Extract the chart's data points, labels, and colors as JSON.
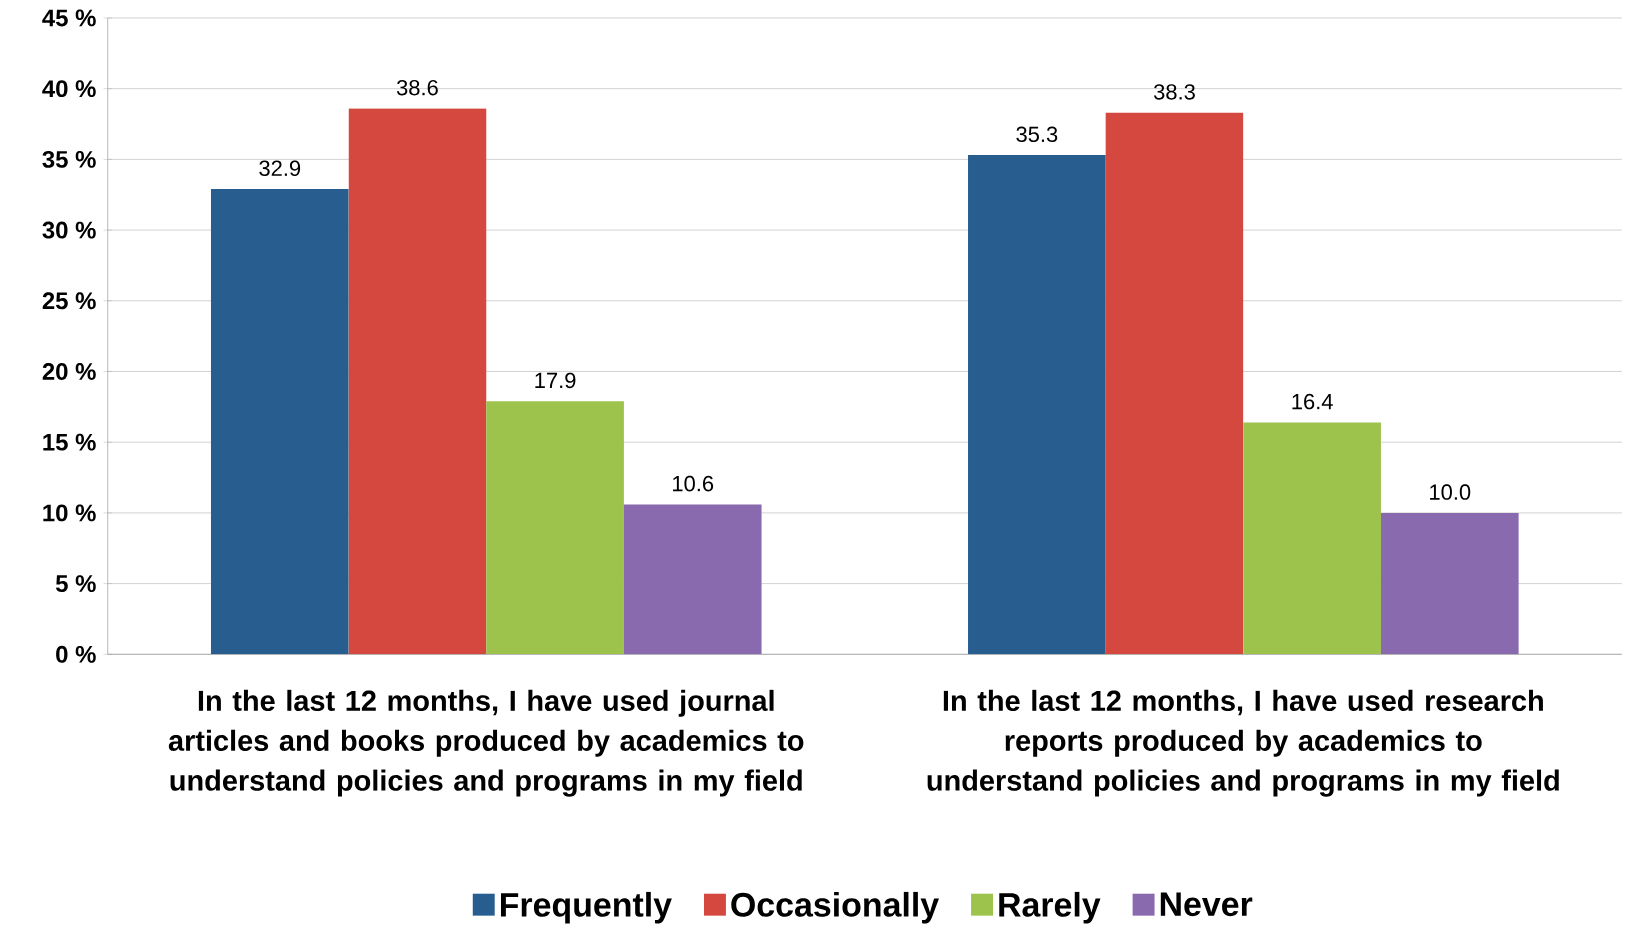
{
  "chart_data": {
    "type": "bar",
    "categories": [
      "In the last 12 months, I have used journal articles and books produced by academics to understand policies and programs in my field",
      "In the last 12 months, I have used research reports produced by academics to understand policies and programs in my field"
    ],
    "series": [
      {
        "name": "Frequently",
        "color": "#285e8f",
        "values": [
          32.9,
          35.3
        ],
        "value_labels": [
          "32.9",
          "35.3"
        ]
      },
      {
        "name": "Occasionally",
        "color": "#d4483f",
        "values": [
          38.6,
          38.3
        ],
        "value_labels": [
          "38.6",
          "38.3"
        ]
      },
      {
        "name": "Rarely",
        "color": "#9dc34c",
        "values": [
          17.9,
          16.4
        ],
        "value_labels": [
          "17.9",
          "16.4"
        ]
      },
      {
        "name": "Never",
        "color": "#8a6aaf",
        "values": [
          10.6,
          10.0
        ],
        "value_labels": [
          "10.6",
          "10.0"
        ]
      }
    ],
    "ylim": [
      0,
      45
    ],
    "yticks": [
      {
        "value": 0,
        "label": "0 %"
      },
      {
        "value": 5,
        "label": "5 %"
      },
      {
        "value": 10,
        "label": "10 %"
      },
      {
        "value": 15,
        "label": "15 %"
      },
      {
        "value": 20,
        "label": "20 %"
      },
      {
        "value": 25,
        "label": "25 %"
      },
      {
        "value": 30,
        "label": "30 %"
      },
      {
        "value": 35,
        "label": "35 %"
      },
      {
        "value": 40,
        "label": "40 %"
      },
      {
        "value": 45,
        "label": "45 %"
      }
    ],
    "grid": "y",
    "legend": "bottom"
  }
}
